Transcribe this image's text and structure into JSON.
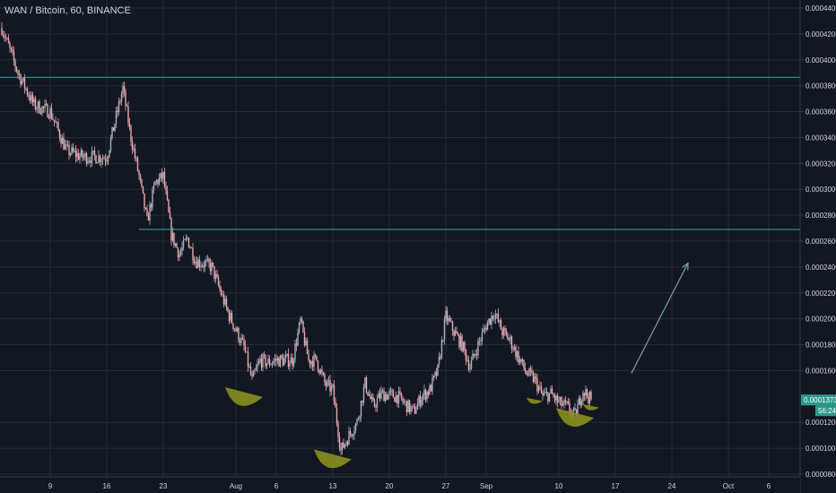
{
  "header": {
    "title": "WAN / Bitcoin, 60, BINANCE"
  },
  "colors": {
    "background": "#131722",
    "grid": "#262b3a",
    "candle_up": "#aab0bc",
    "candle_down": "#e8a7ac",
    "horizontal_line": "#3aa89b",
    "arrow": "#6aa6b0",
    "highlight_shape": "#8a8f1f",
    "price_tag": "#2b9a8d"
  },
  "price_axis": {
    "labels": [
      "0.0004400",
      "0.0004200",
      "0.0004000",
      "0.0003800",
      "0.0003600",
      "0.0003400",
      "0.0003200",
      "0.0003000",
      "0.0002800",
      "0.0002600",
      "0.0002400",
      "0.0002200",
      "0.0002000",
      "0.0001800",
      "0.0001600",
      "0.0001200",
      "0.0001000",
      "0.0000800"
    ],
    "last_price_label": "0.0001373",
    "countdown_label": "56:24"
  },
  "time_axis": {
    "labels": [
      "9",
      "16",
      "23",
      "Aug",
      "6",
      "13",
      "20",
      "27",
      "Sep",
      "10",
      "17",
      "24",
      "Oct",
      "6"
    ]
  },
  "chart_data": {
    "type": "candlestick",
    "title": "WAN / Bitcoin, 60, BINANCE",
    "symbol": "WAN / Bitcoin",
    "interval": "60",
    "exchange": "BINANCE",
    "ylim": [
      8e-05,
      0.00044
    ],
    "x_range": [
      "Jul 3",
      "Oct 10"
    ],
    "last_price": 0.0001373,
    "price_path": [
      {
        "date": "Jul 3",
        "price": 0.000425
      },
      {
        "date": "Jul 5",
        "price": 0.00039
      },
      {
        "date": "Jul 7",
        "price": 0.000365
      },
      {
        "date": "Jul 9",
        "price": 0.00036
      },
      {
        "date": "Jul 11",
        "price": 0.00033
      },
      {
        "date": "Jul 13",
        "price": 0.000325
      },
      {
        "date": "Jul 16",
        "price": 0.000325
      },
      {
        "date": "Jul 18",
        "price": 0.000378
      },
      {
        "date": "Jul 19",
        "price": 0.00034
      },
      {
        "date": "Jul 20",
        "price": 0.00031
      },
      {
        "date": "Jul 21",
        "price": 0.000275
      },
      {
        "date": "Jul 22",
        "price": 0.000305
      },
      {
        "date": "Jul 23",
        "price": 0.00031
      },
      {
        "date": "Jul 24",
        "price": 0.000265
      },
      {
        "date": "Jul 25",
        "price": 0.00025
      },
      {
        "date": "Jul 26",
        "price": 0.000262
      },
      {
        "date": "Jul 27",
        "price": 0.000245
      },
      {
        "date": "Jul 29",
        "price": 0.00024
      },
      {
        "date": "Jul 31",
        "price": 0.000205
      },
      {
        "date": "Aug 2",
        "price": 0.000178
      },
      {
        "date": "Aug 3",
        "price": 0.000152
      },
      {
        "date": "Aug 4",
        "price": 0.000168
      },
      {
        "date": "Aug 5",
        "price": 0.000166
      },
      {
        "date": "Aug 6",
        "price": 0.000168
      },
      {
        "date": "Aug 8",
        "price": 0.000168
      },
      {
        "date": "Aug 9",
        "price": 0.000198
      },
      {
        "date": "Aug 10",
        "price": 0.000168
      },
      {
        "date": "Aug 11",
        "price": 0.000168
      },
      {
        "date": "Aug 12",
        "price": 0.00015
      },
      {
        "date": "Aug 13",
        "price": 0.000145
      },
      {
        "date": "Aug 14",
        "price": 9.8e-05
      },
      {
        "date": "Aug 15",
        "price": 0.00011
      },
      {
        "date": "Aug 16",
        "price": 0.00012
      },
      {
        "date": "Aug 17",
        "price": 0.00015
      },
      {
        "date": "Aug 18",
        "price": 0.000132
      },
      {
        "date": "Aug 19",
        "price": 0.000142
      },
      {
        "date": "Aug 21",
        "price": 0.00014
      },
      {
        "date": "Aug 23",
        "price": 0.000128
      },
      {
        "date": "Aug 24",
        "price": 0.00014
      },
      {
        "date": "Aug 25",
        "price": 0.000145
      },
      {
        "date": "Aug 26",
        "price": 0.00016
      },
      {
        "date": "Aug 27",
        "price": 0.000202
      },
      {
        "date": "Aug 28",
        "price": 0.00019
      },
      {
        "date": "Aug 29",
        "price": 0.00018
      },
      {
        "date": "Aug 30",
        "price": 0.000163
      },
      {
        "date": "Aug 31",
        "price": 0.00018
      },
      {
        "date": "Sep 1",
        "price": 0.000195
      },
      {
        "date": "Sep 2",
        "price": 0.000205
      },
      {
        "date": "Sep 3",
        "price": 0.00019
      },
      {
        "date": "Sep 4",
        "price": 0.000183
      },
      {
        "date": "Sep 5",
        "price": 0.00017
      },
      {
        "date": "Sep 6",
        "price": 0.000158
      },
      {
        "date": "Sep 7",
        "price": 0.000153
      },
      {
        "date": "Sep 8",
        "price": 0.00014
      },
      {
        "date": "Sep 9",
        "price": 0.000142
      },
      {
        "date": "Sep 10",
        "price": 0.000135
      },
      {
        "date": "Sep 11",
        "price": 0.000132
      },
      {
        "date": "Sep 12",
        "price": 0.000125
      },
      {
        "date": "Sep 13",
        "price": 0.000145
      },
      {
        "date": "Sep 14",
        "price": 0.000137
      }
    ],
    "horizontal_lines": [
      0.0003865,
      0.000269
    ],
    "arrow": {
      "from": {
        "date": "Sep 19",
        "price": 0.000158
      },
      "to": {
        "date": "Sep 26",
        "price": 0.000243
      }
    },
    "highlight_shapes": [
      {
        "date": "Aug 2",
        "price": 0.000138,
        "size": "large"
      },
      {
        "date": "Aug 13",
        "price": 9e-05,
        "size": "large"
      },
      {
        "date": "Sep 7",
        "price": 0.000136,
        "size": "small"
      },
      {
        "date": "Sep 12",
        "price": 0.000122,
        "size": "large"
      },
      {
        "date": "Sep 14",
        "price": 0.000131,
        "size": "small"
      }
    ],
    "grid": true
  }
}
